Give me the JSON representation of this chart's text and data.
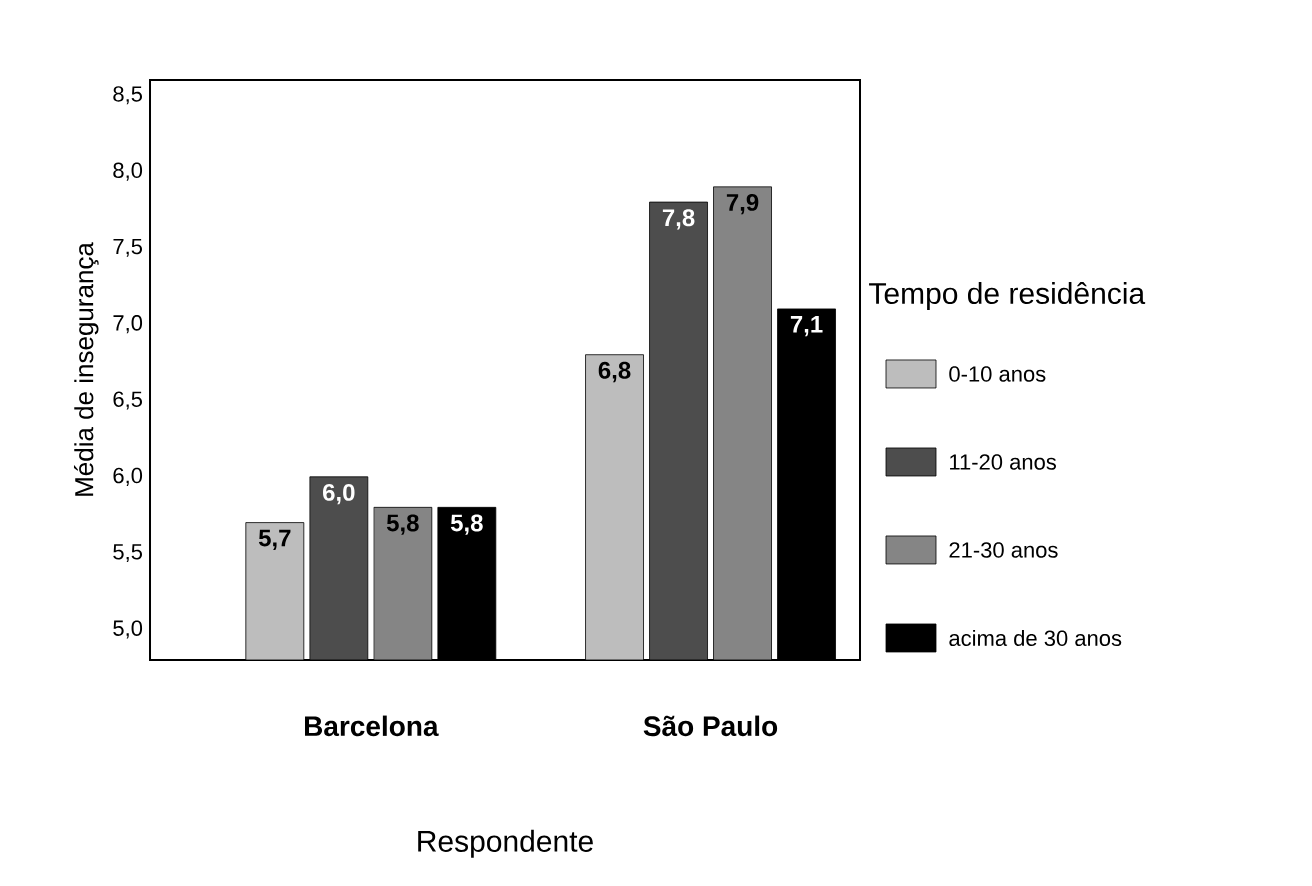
{
  "chart_data": {
    "type": "bar",
    "xlabel": "Respondente",
    "ylabel": "Média de insegurança",
    "legend_title": "Tempo de residência",
    "categories": [
      "Barcelona",
      "São Paulo"
    ],
    "series": [
      {
        "name": "0-10 anos",
        "color": "#bdbdbd",
        "values": [
          5.7,
          6.8
        ],
        "value_labels": [
          "5,7",
          "6,8"
        ]
      },
      {
        "name": "11-20 anos",
        "color": "#4d4d4d",
        "values": [
          6.0,
          7.8
        ],
        "value_labels": [
          "6,0",
          "7,8"
        ]
      },
      {
        "name": "21-30 anos",
        "color": "#858585",
        "values": [
          5.8,
          7.9
        ],
        "value_labels": [
          "5,8",
          "7,9"
        ]
      },
      {
        "name": "acima de 30 anos",
        "color": "#000000",
        "values": [
          5.8,
          7.1
        ],
        "value_labels": [
          "5,8",
          "7,1"
        ]
      }
    ],
    "ylim": [
      4.8,
      8.6
    ],
    "yticks": [
      {
        "value": 5.0,
        "label": "5,0"
      },
      {
        "value": 5.5,
        "label": "5,5"
      },
      {
        "value": 6.0,
        "label": "6,0"
      },
      {
        "value": 6.5,
        "label": "6,5"
      },
      {
        "value": 7.0,
        "label": "7,0"
      },
      {
        "value": 7.5,
        "label": "7,5"
      },
      {
        "value": 8.0,
        "label": "8,0"
      },
      {
        "value": 8.5,
        "label": "8,5"
      }
    ],
    "grid": false,
    "legend": "right"
  }
}
